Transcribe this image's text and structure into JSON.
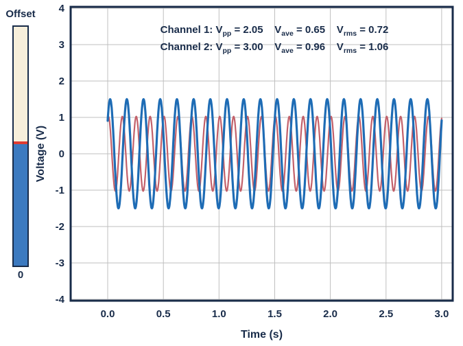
{
  "offset_slider": {
    "title": "Offset",
    "min_label": "0",
    "top_color": "#f7efdb",
    "bottom_color": "#3c7ac0",
    "marker_color": "#e03c31",
    "fill_ratio_top": 0.48
  },
  "colors": {
    "navy": "#182b49",
    "grid": "#bfbfbf",
    "plot_background": "#ffffff",
    "channel1_red": "#c2606a",
    "channel2_blue": "#1e6cb5"
  },
  "chart_data": {
    "type": "line",
    "title": "",
    "xlabel": "Time (s)",
    "ylabel": "Voltage (V)",
    "xlim": [
      -0.33,
      3.1
    ],
    "ylim": [
      -4,
      4
    ],
    "x_ticks": [
      0.0,
      0.5,
      1.0,
      1.5,
      2.0,
      2.5,
      3.0
    ],
    "x_tick_labels": [
      "0.0",
      "0.5",
      "1.0",
      "1.5",
      "2.0",
      "2.5",
      "3.0"
    ],
    "y_ticks": [
      -4,
      -3,
      -2,
      -1,
      0,
      1,
      2,
      3,
      4
    ],
    "y_tick_labels": [
      "-4",
      "-3",
      "-2",
      "-1",
      "0",
      "1",
      "2",
      "3",
      "4"
    ],
    "grid": true,
    "legend": "none",
    "series": [
      {
        "name": "Channel 1",
        "waveform": "sine",
        "amplitude": 1.025,
        "offset": 0,
        "frequency_hz": 8.0,
        "cycles_shown": 24,
        "phase_rad": 1.25,
        "color": "#c2606a",
        "width": 2.2,
        "vpp": 2.05,
        "vave": 0.65,
        "vrms": 0.72
      },
      {
        "name": "Channel 2",
        "waveform": "sine",
        "amplitude": 1.5,
        "offset": 0,
        "frequency_hz": 6.667,
        "cycles_shown": 20,
        "phase_rad": 0.65,
        "color": "#1e6cb5",
        "width": 3.2,
        "vpp": 3.0,
        "vave": 0.96,
        "vrms": 1.06
      }
    ],
    "annotations": [
      {
        "label": "Channel 1:",
        "stats": [
          {
            "base": "V",
            "sub": "pp",
            "eq": "=",
            "value": "2.05"
          },
          {
            "base": "V",
            "sub": "ave",
            "eq": "=",
            "value": "0.65"
          },
          {
            "base": "V",
            "sub": "rms",
            "eq": "=",
            "value": "0.72"
          }
        ]
      },
      {
        "label": "Channel 2:",
        "stats": [
          {
            "base": "V",
            "sub": "pp",
            "eq": "=",
            "value": "3.00"
          },
          {
            "base": "V",
            "sub": "ave",
            "eq": "=",
            "value": "0.96"
          },
          {
            "base": "V",
            "sub": "rms",
            "eq": "=",
            "value": "1.06"
          }
        ]
      }
    ]
  }
}
